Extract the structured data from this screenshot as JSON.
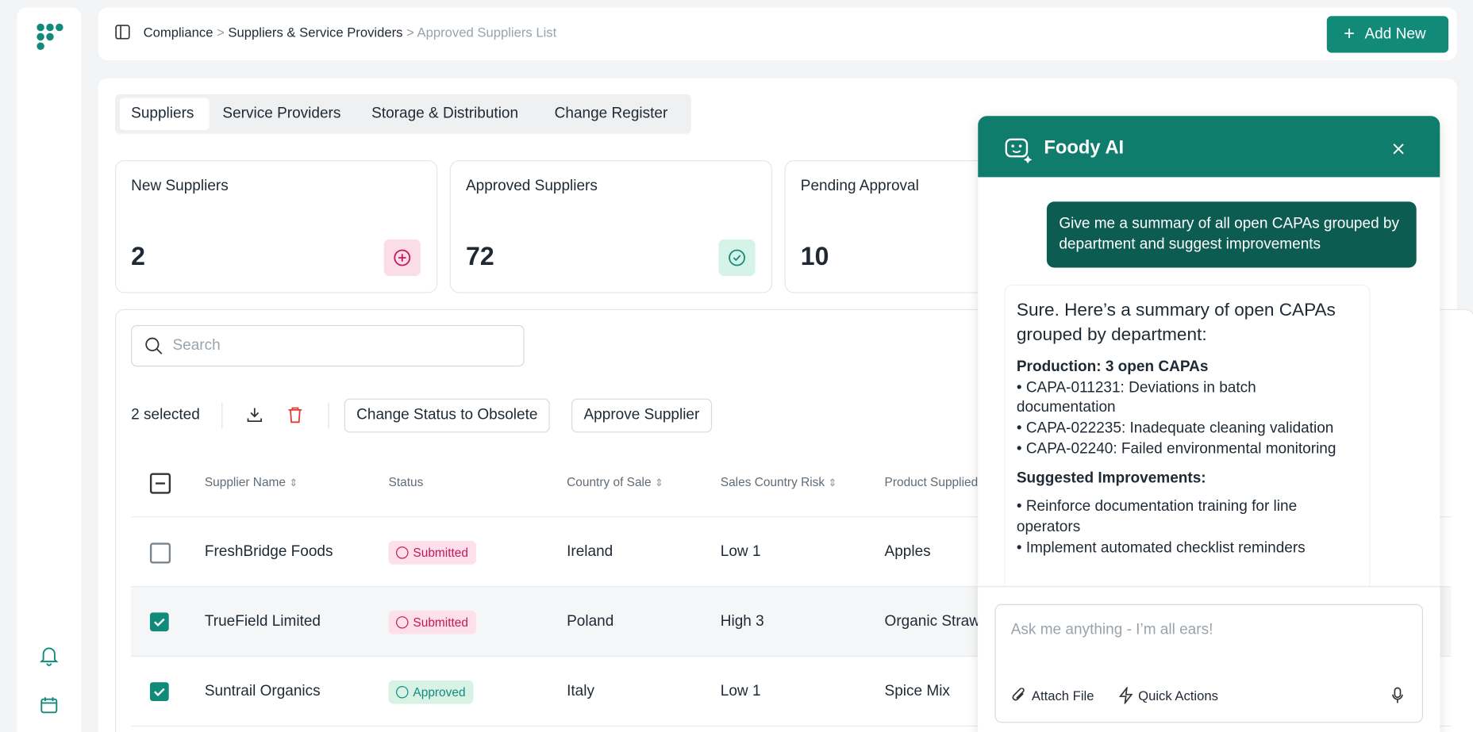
{
  "breadcrumb": [
    "Compliance",
    "Suppliers & Service Providers",
    "Approved Suppliers List"
  ],
  "add_button": "Add New",
  "tabs": [
    "Suppliers",
    "Service Providers",
    "Storage & Distribution",
    "Change Register"
  ],
  "stat_cards": [
    {
      "label": "New Suppliers",
      "value": "2"
    },
    {
      "label": "Approved Suppliers",
      "value": "72"
    },
    {
      "label": "Pending Approval",
      "value": "10"
    }
  ],
  "search_placeholder": "Search",
  "toolbar": {
    "selected": "2 selected",
    "actions": [
      "Change Status to Obsolete",
      "Approve Supplier"
    ]
  },
  "table": {
    "columns": [
      "Supplier Name",
      "Status",
      "Country of Sale",
      "Sales Country Risk",
      "Product Supplied"
    ],
    "rows": [
      [
        "FreshBridge Foods",
        "Submitted",
        "Ireland",
        "Low 1",
        "Apples"
      ],
      [
        "TrueField Limited",
        "Submitted",
        "Poland",
        "High 3",
        "Organic Strawberries"
      ],
      [
        "Suntrail Organics",
        "Approved",
        "Italy",
        "Low 1",
        "Spice Mix"
      ]
    ]
  },
  "chat": {
    "title": "Foody AI",
    "user_message": "Give me a summary of all open CAPAs grouped by department and suggest improvements",
    "reply": {
      "intro": "Sure. Here’s a summary of open CAPAs grouped by department:",
      "section": "Production: 3 open CAPAs",
      "items": [
        "• CAPA-011231: Deviations in batch documentation",
        "• CAPA-022235: Inadequate cleaning validation",
        "• CAPA-02240: Failed environmental monitoring"
      ],
      "improvements_title": "Suggested Improvements:",
      "improvements": [
        "• Reinforce documentation training for line operators",
        "• Implement automated checklist reminders"
      ]
    },
    "input_placeholder": "Ask me anything - I’m all ears!",
    "attach": "Attach File",
    "quick_actions": "Quick Actions"
  }
}
